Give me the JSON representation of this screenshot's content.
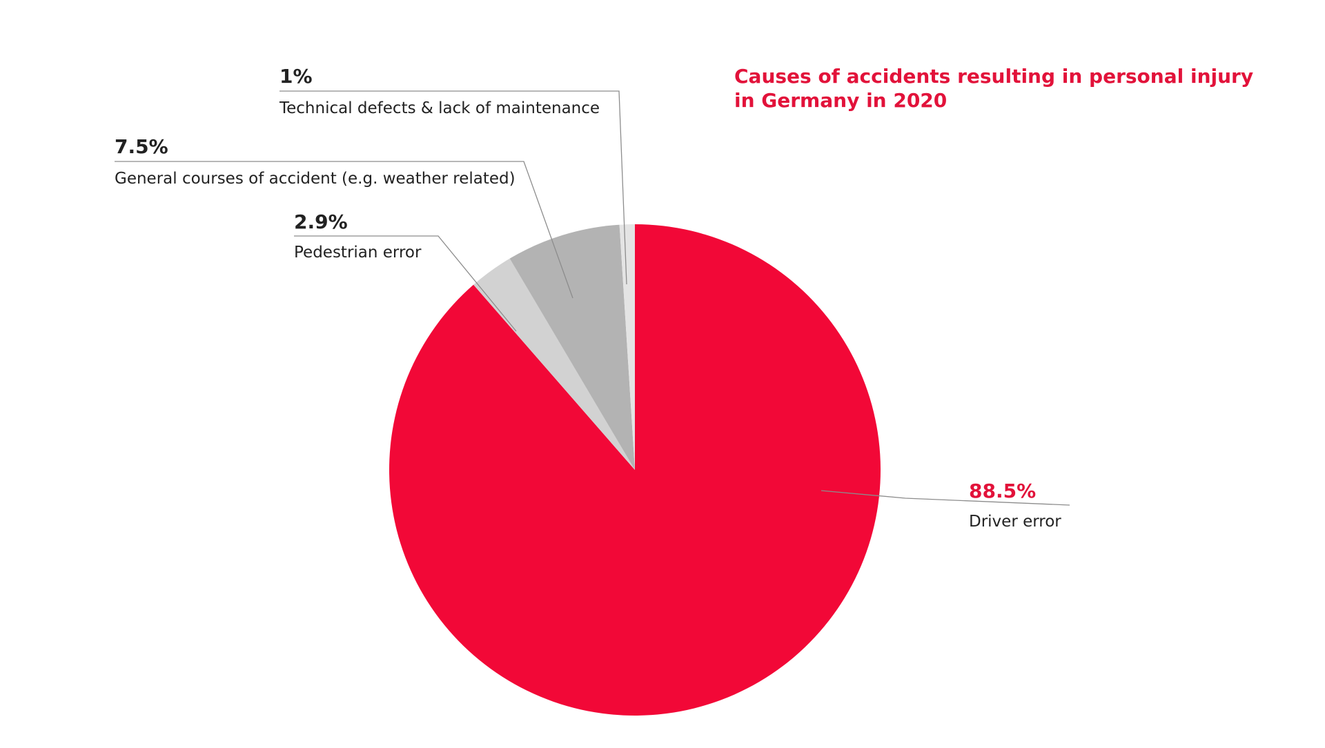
{
  "chart_data": {
    "type": "pie",
    "title": "Causes of accidents resulting in personal injury in Germany in 2020",
    "title_lines": [
      "Causes of accidents resulting in personal injury",
      "in Germany in 2020"
    ],
    "start_angle": "12 o'clock, clockwise",
    "slices": [
      {
        "key": "driver",
        "label": "Driver error",
        "value": 88.5,
        "value_label": "88.5%",
        "color": "#f20837",
        "value_color": "#e2123a"
      },
      {
        "key": "pedestrian",
        "label": "Pedestrian error",
        "value": 2.9,
        "value_label": "2.9%",
        "color": "#d2d2d2",
        "value_color": "#222222"
      },
      {
        "key": "general",
        "label": "General courses of accident (e.g. weather related)",
        "value": 7.5,
        "value_label": "7.5%",
        "color": "#b3b3b3",
        "value_color": "#222222"
      },
      {
        "key": "technical",
        "label": "Technical defects & lack of maintenance",
        "value": 1,
        "value_label": "1%",
        "color": "#e4e4e4",
        "value_color": "#222222"
      }
    ]
  },
  "colors": {
    "title": "#e2123a",
    "text": "#222222",
    "leader_line": "#8c8c8c",
    "background": "#ffffff"
  }
}
